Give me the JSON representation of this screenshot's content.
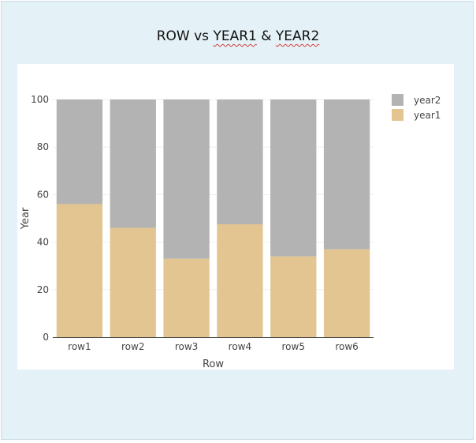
{
  "chart_data": {
    "type": "bar",
    "stacked": true,
    "title_parts": [
      "ROW vs ",
      "YEAR1",
      " & ",
      "YEAR2"
    ],
    "xlabel": "Row",
    "ylabel": "Year",
    "categories": [
      "row1",
      "row2",
      "row3",
      "row4",
      "row5",
      "row6"
    ],
    "ylim": [
      0,
      100
    ],
    "yticks": [
      0,
      20,
      40,
      60,
      80,
      100
    ],
    "grid": true,
    "legend_position": "top-right",
    "series": [
      {
        "name": "year1",
        "color": "#e2c591",
        "values": [
          56,
          46,
          33,
          47.5,
          34,
          37
        ]
      },
      {
        "name": "year2",
        "color": "#b3b3b3",
        "values": [
          44,
          54,
          67,
          52.5,
          66,
          63
        ]
      }
    ]
  }
}
